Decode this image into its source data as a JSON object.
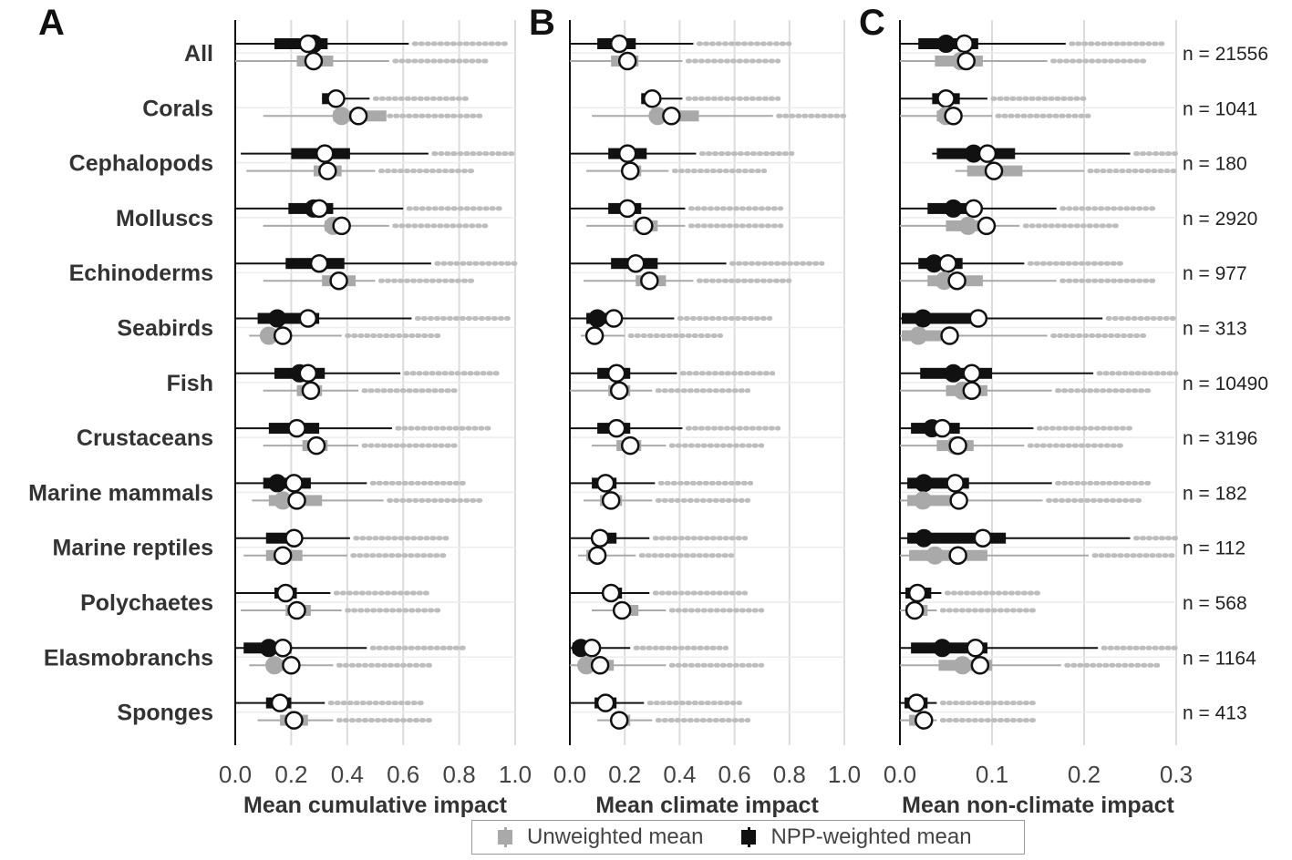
{
  "colors": {
    "unweighted": "#a9a9a9",
    "weighted": "#111111",
    "grid": "#dcdcdc",
    "axis": "#111111"
  },
  "categories": [
    "All",
    "Corals",
    "Cephalopods",
    "Molluscs",
    "Echinoderms",
    "Seabirds",
    "Fish",
    "Crustaceans",
    "Marine mammals",
    "Marine reptiles",
    "Polychaetes",
    "Elasmobranchs",
    "Sponges"
  ],
  "sample_sizes": [
    "n = 21556",
    "n = 1041",
    "n = 180",
    "n = 2920",
    "n = 977",
    "n = 313",
    "n = 10490",
    "n = 3196",
    "n = 182",
    "n = 112",
    "n = 568",
    "n = 1164",
    "n = 413"
  ],
  "legend": {
    "unweighted": "Unweighted mean",
    "weighted": "NPP-weighted mean"
  },
  "chart_data": [
    {
      "type": "box",
      "panel": "A",
      "xlabel": "Mean cumulative impact",
      "xlim": [
        0,
        1
      ],
      "ticks": [
        "0.0",
        "0.2",
        "0.4",
        "0.6",
        "0.8",
        "1.0"
      ],
      "grid": true,
      "series": [
        {
          "name": "NPP-weighted mean",
          "box": [
            [
              0,
              0.62,
              0.14,
              0.33,
              0.28,
              0.26
            ],
            [
              0.31,
              0.48,
              0.31,
              0.36,
              0.36,
              0.36
            ],
            [
              0.02,
              0.69,
              0.2,
              0.41,
              0.32,
              0.32
            ],
            [
              0,
              0.6,
              0.19,
              0.35,
              0.28,
              0.3
            ],
            [
              0,
              0.7,
              0.18,
              0.39,
              0.3,
              0.3
            ],
            [
              0,
              0.63,
              0.08,
              0.3,
              0.15,
              0.26
            ],
            [
              0,
              0.59,
              0.14,
              0.32,
              0.23,
              0.26
            ],
            [
              0,
              0.56,
              0.12,
              0.3,
              0.22,
              0.22
            ],
            [
              0,
              0.47,
              0.1,
              0.27,
              0.15,
              0.21
            ],
            [
              0,
              0.41,
              0.11,
              0.23,
              0.21,
              0.21
            ],
            [
              0,
              0.34,
              0.14,
              0.22,
              0.18,
              0.18
            ],
            [
              0,
              0.47,
              0.03,
              0.2,
              0.12,
              0.17
            ],
            [
              0,
              0.32,
              0.11,
              0.2,
              0.16,
              0.16
            ]
          ]
        },
        {
          "name": "Unweighted mean",
          "box": [
            [
              0,
              0.55,
              0.22,
              0.35,
              0.28,
              0.28
            ],
            [
              0.1,
              0.53,
              0.35,
              0.54,
              0.38,
              0.44
            ],
            [
              0.04,
              0.5,
              0.28,
              0.38,
              0.33,
              0.33
            ],
            [
              0.1,
              0.55,
              0.32,
              0.4,
              0.35,
              0.38
            ],
            [
              0.1,
              0.5,
              0.31,
              0.43,
              0.37,
              0.37
            ],
            [
              0.05,
              0.38,
              0.11,
              0.2,
              0.12,
              0.17
            ],
            [
              0.1,
              0.44,
              0.22,
              0.31,
              0.27,
              0.27
            ],
            [
              0.1,
              0.44,
              0.24,
              0.33,
              0.29,
              0.29
            ],
            [
              0.06,
              0.53,
              0.12,
              0.31,
              0.17,
              0.22
            ],
            [
              0.03,
              0.4,
              0.11,
              0.24,
              0.17,
              0.17
            ],
            [
              0.02,
              0.38,
              0.18,
              0.27,
              0.22,
              0.22
            ],
            [
              0.05,
              0.35,
              0.12,
              0.21,
              0.14,
              0.2
            ],
            [
              0.08,
              0.35,
              0.16,
              0.26,
              0.21,
              0.21
            ]
          ]
        }
      ]
    },
    {
      "type": "box",
      "panel": "B",
      "xlabel": "Mean climate impact",
      "xlim": [
        0,
        1
      ],
      "ticks": [
        "0.0",
        "0.2",
        "0.4",
        "0.6",
        "0.8",
        "1.0"
      ],
      "grid": true,
      "series": [
        {
          "name": "NPP-weighted mean",
          "box": [
            [
              0,
              0.45,
              0.1,
              0.24,
              0.18,
              0.18
            ],
            [
              0.26,
              0.41,
              0.26,
              0.32,
              0.3,
              0.3
            ],
            [
              0,
              0.46,
              0.14,
              0.28,
              0.21,
              0.21
            ],
            [
              0,
              0.42,
              0.14,
              0.26,
              0.21,
              0.21
            ],
            [
              0,
              0.57,
              0.15,
              0.32,
              0.24,
              0.24
            ],
            [
              0,
              0.38,
              0.06,
              0.14,
              0.1,
              0.16
            ],
            [
              0,
              0.39,
              0.1,
              0.22,
              0.17,
              0.17
            ],
            [
              0,
              0.41,
              0.1,
              0.22,
              0.17,
              0.17
            ],
            [
              0,
              0.31,
              0.08,
              0.17,
              0.13,
              0.13
            ],
            [
              0,
              0.29,
              0.08,
              0.17,
              0.11,
              0.11
            ],
            [
              0,
              0.29,
              0.12,
              0.19,
              0.15,
              0.15
            ],
            [
              0,
              0.22,
              0.01,
              0.08,
              0.04,
              0.08
            ],
            [
              0,
              0.27,
              0.09,
              0.17,
              0.13,
              0.13
            ]
          ]
        },
        {
          "name": "Unweighted mean",
          "box": [
            [
              0,
              0.41,
              0.15,
              0.25,
              0.21,
              0.21
            ],
            [
              0.08,
              0.74,
              0.34,
              0.47,
              0.32,
              0.37
            ],
            [
              0.06,
              0.36,
              0.19,
              0.26,
              0.22,
              0.22
            ],
            [
              0.06,
              0.42,
              0.23,
              0.32,
              0.27,
              0.27
            ],
            [
              0.05,
              0.45,
              0.24,
              0.35,
              0.29,
              0.29
            ],
            [
              0.04,
              0.2,
              0.06,
              0.1,
              0.09,
              0.09
            ],
            [
              0,
              0.3,
              0.14,
              0.22,
              0.18,
              0.18
            ],
            [
              0.08,
              0.35,
              0.17,
              0.26,
              0.22,
              0.22
            ],
            [
              0.05,
              0.3,
              0.11,
              0.19,
              0.15,
              0.15
            ],
            [
              0.03,
              0.24,
              0.06,
              0.13,
              0.1,
              0.1
            ],
            [
              0.08,
              0.35,
              0.16,
              0.25,
              0.19,
              0.19
            ],
            [
              0,
              0.35,
              0.05,
              0.16,
              0.06,
              0.11
            ],
            [
              0.1,
              0.3,
              0.15,
              0.22,
              0.18,
              0.18
            ]
          ]
        }
      ]
    },
    {
      "type": "box",
      "panel": "C",
      "xlabel": "Mean non-climate impact",
      "xlim": [
        0,
        0.3
      ],
      "ticks": [
        "0.0",
        "0.1",
        "0.2",
        "0.3"
      ],
      "grid": true,
      "series": [
        {
          "name": "NPP-weighted mean",
          "box": [
            [
              0,
              0.18,
              0.02,
              0.085,
              0.05,
              0.07
            ],
            [
              0,
              0.095,
              0.035,
              0.065,
              0.05,
              0.05
            ],
            [
              0.035,
              0.25,
              0.04,
              0.125,
              0.08,
              0.095
            ],
            [
              0,
              0.17,
              0.03,
              0.075,
              0.058,
              0.08
            ],
            [
              0,
              0.135,
              0.02,
              0.068,
              0.037,
              0.052
            ],
            [
              0,
              0.22,
              0.002,
              0.085,
              0.025,
              0.085
            ],
            [
              0,
              0.21,
              0.022,
              0.1,
              0.058,
              0.078
            ],
            [
              0,
              0.145,
              0.012,
              0.065,
              0.035,
              0.046
            ],
            [
              0,
              0.165,
              0.008,
              0.075,
              0.026,
              0.06
            ],
            [
              0,
              0.25,
              0.008,
              0.115,
              0.026,
              0.09
            ],
            [
              0,
              0.045,
              0.006,
              0.034,
              0.019,
              0.019
            ],
            [
              0,
              0.215,
              0.012,
              0.095,
              0.046,
              0.082
            ],
            [
              0,
              0.04,
              0.005,
              0.03,
              0.018,
              0.018
            ]
          ]
        },
        {
          "name": "Unweighted mean",
          "box": [
            [
              0,
              0.16,
              0.038,
              0.09,
              0.066,
              0.072
            ],
            [
              0,
              0.1,
              0.04,
              0.065,
              0.05,
              0.058
            ],
            [
              0.06,
              0.2,
              0.073,
              0.133,
              0.102,
              0.102
            ],
            [
              0,
              0.13,
              0.05,
              0.09,
              0.074,
              0.094
            ],
            [
              0,
              0.17,
              0.03,
              0.09,
              0.048,
              0.062
            ],
            [
              0,
              0.16,
              0.002,
              0.045,
              0.02,
              0.054
            ],
            [
              0,
              0.165,
              0.05,
              0.095,
              0.068,
              0.078
            ],
            [
              0,
              0.135,
              0.04,
              0.08,
              0.06,
              0.063
            ],
            [
              0,
              0.155,
              0.008,
              0.065,
              0.025,
              0.064
            ],
            [
              0,
              0.205,
              0.01,
              0.095,
              0.038,
              0.063
            ],
            [
              0,
              0.04,
              0.006,
              0.03,
              0.016,
              0.016
            ],
            [
              0,
              0.175,
              0.042,
              0.1,
              0.068,
              0.087
            ],
            [
              0,
              0.04,
              0.01,
              0.03,
              0.026,
              0.026
            ]
          ]
        }
      ]
    }
  ]
}
